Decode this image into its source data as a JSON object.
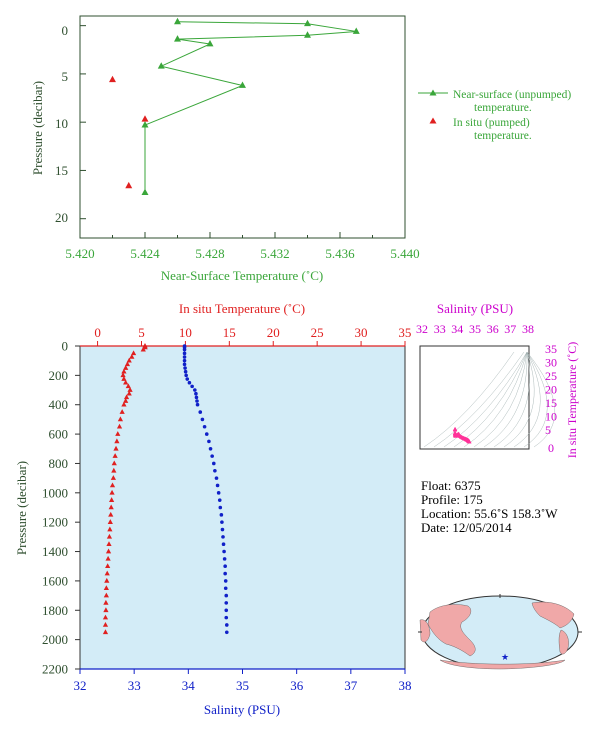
{
  "colors": {
    "green": "#3aa63a",
    "green_dark": "#2e7d32",
    "axis_dark": "#2f4f2f",
    "red": "#e02020",
    "blue": "#1020c8",
    "magenta": "#cc00cc",
    "panel_bg": "#d3ecf7",
    "land": "#f0a8a8",
    "ocean": "#d3ecf7"
  },
  "top_chart": {
    "ylabel": "Pressure (decibar)",
    "xlabel": "Near-Surface Temperature (˚C)",
    "xticks": [
      "5.420",
      "5.424",
      "5.428",
      "5.432",
      "5.436",
      "5.440"
    ],
    "yticks": [
      "0",
      "5",
      "10",
      "15",
      "20"
    ],
    "legend": {
      "unpumped_line1": "Near-surface (unpumped)",
      "unpumped_line2": "temperature.",
      "pumped_line1": "In situ (pumped)",
      "pumped_line2": "temperature."
    }
  },
  "main_chart": {
    "top_label": "In situ Temperature (˚C)",
    "bottom_label": "Salinity (PSU)",
    "ylabel": "Pressure (decibar)",
    "top_ticks": [
      "0",
      "5",
      "10",
      "15",
      "20",
      "25",
      "30",
      "35"
    ],
    "bottom_ticks": [
      "32",
      "33",
      "34",
      "35",
      "36",
      "37",
      "38"
    ],
    "yticks": [
      "0",
      "200",
      "400",
      "600",
      "800",
      "1000",
      "1200",
      "1400",
      "1600",
      "1800",
      "2000",
      "2200"
    ]
  },
  "ts_chart": {
    "top_label": "Salinity (PSU)",
    "right_label": "In situ Temperature (˚C)",
    "top_ticks": [
      "32",
      "33",
      "34",
      "35",
      "36",
      "37",
      "38"
    ],
    "right_ticks": [
      "35",
      "30",
      "25",
      "20",
      "15",
      "10",
      "5",
      "0"
    ]
  },
  "info": {
    "float": "Float:  6375",
    "profile": "Profile:  175",
    "location": "Location:  55.6˚S  158.3˚W",
    "date": "Date:  12/05/2014"
  },
  "chart_data": [
    {
      "type": "line",
      "name": "near-surface temperature",
      "xlim": [
        5.42,
        5.44
      ],
      "ylim": [
        22,
        -1
      ],
      "grid": false,
      "legend": "right",
      "series": [
        {
          "name": "Near-surface (unpumped) temperature.",
          "x": [
            5.426,
            5.434,
            5.437,
            5.434,
            5.426,
            5.428,
            5.425,
            5.43,
            5.424,
            5.424
          ],
          "y": [
            -0.4,
            -0.2,
            0.6,
            1.0,
            1.4,
            1.9,
            4.2,
            6.2,
            10.3,
            17.3
          ]
        },
        {
          "name": "In situ (pumped) temperature.",
          "x": [
            5.422,
            5.424,
            5.423
          ],
          "y": [
            5.6,
            9.7,
            16.6
          ]
        }
      ]
    },
    {
      "type": "scatter",
      "name": "profile",
      "ylim": [
        2200,
        0
      ],
      "temperature_lim": [
        -2,
        35
      ],
      "salinity_lim": [
        32,
        38
      ],
      "series": [
        {
          "name": "In situ Temperature (˚C)",
          "p": [
            0,
            10,
            25,
            50,
            75,
            100,
            125,
            150,
            175,
            200,
            225,
            250,
            275,
            300,
            325,
            350,
            375,
            400,
            450,
            500,
            550,
            600,
            650,
            700,
            750,
            800,
            850,
            900,
            950,
            1000,
            1050,
            1100,
            1150,
            1200,
            1250,
            1300,
            1350,
            1400,
            1450,
            1500,
            1550,
            1600,
            1650,
            1700,
            1750,
            1800,
            1850,
            1900,
            1950
          ],
          "values": [
            5.4,
            5.42,
            5.2,
            4.1,
            3.9,
            3.6,
            3.4,
            3.2,
            3.0,
            2.9,
            3.0,
            3.2,
            3.5,
            3.7,
            3.6,
            3.3,
            3.2,
            3.0,
            2.8,
            2.6,
            2.5,
            2.3,
            2.2,
            2.1,
            2.0,
            1.9,
            1.85,
            1.8,
            1.7,
            1.65,
            1.6,
            1.55,
            1.5,
            1.45,
            1.4,
            1.35,
            1.3,
            1.25,
            1.2,
            1.15,
            1.1,
            1.05,
            1.0,
            1.0,
            0.95,
            0.95,
            0.9,
            0.9,
            0.9
          ]
        },
        {
          "name": "Salinity (PSU)",
          "p": [
            0,
            10,
            25,
            50,
            75,
            100,
            125,
            150,
            175,
            200,
            225,
            250,
            275,
            300,
            325,
            350,
            375,
            400,
            450,
            500,
            550,
            600,
            650,
            700,
            750,
            800,
            850,
            900,
            950,
            1000,
            1050,
            1100,
            1150,
            1200,
            1250,
            1300,
            1350,
            1400,
            1450,
            1500,
            1550,
            1600,
            1650,
            1700,
            1750,
            1800,
            1850,
            1900,
            1950
          ],
          "values": [
            33.93,
            33.93,
            33.93,
            33.93,
            33.93,
            33.93,
            33.93,
            33.94,
            33.95,
            33.96,
            33.98,
            34.02,
            34.07,
            34.12,
            34.14,
            34.15,
            34.16,
            34.17,
            34.22,
            34.26,
            34.3,
            34.34,
            34.38,
            34.41,
            34.44,
            34.47,
            34.49,
            34.52,
            34.54,
            34.56,
            34.58,
            34.59,
            34.61,
            34.62,
            34.63,
            34.64,
            34.65,
            34.66,
            34.67,
            34.68,
            34.68,
            34.69,
            34.69,
            34.7,
            34.7,
            34.7,
            34.7,
            34.71,
            34.71
          ]
        }
      ]
    }
  ]
}
